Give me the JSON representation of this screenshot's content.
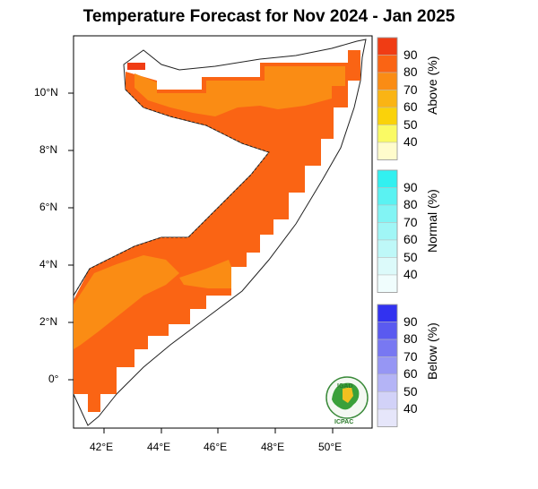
{
  "title": "Temperature Forecast for Nov 2024 - Jan 2025",
  "map": {
    "lon_ticks": [
      "42°E",
      "44°E",
      "46°E",
      "48°E",
      "50°E"
    ],
    "lat_ticks": [
      "10°N",
      "8°N",
      "6°N",
      "4°N",
      "2°N",
      "0°"
    ]
  },
  "legend": {
    "above": {
      "title": "Above (%)",
      "levels": [
        "90",
        "80",
        "70",
        "60",
        "50",
        "40"
      ],
      "colors": [
        "#f03c14",
        "#fa6414",
        "#fa8c14",
        "#fab414",
        "#fad20a",
        "#fafa64",
        "#fffccc"
      ]
    },
    "normal": {
      "title": "Normal (%)",
      "levels": [
        "90",
        "80",
        "70",
        "60",
        "50",
        "40"
      ],
      "colors": [
        "#32f0f0",
        "#5af2f2",
        "#82f4f4",
        "#a0f6f6",
        "#bef8f8",
        "#dcfafa",
        "#f0fdfd"
      ]
    },
    "below": {
      "title": "Below (%)",
      "levels": [
        "90",
        "80",
        "70",
        "60",
        "50",
        "40"
      ],
      "colors": [
        "#3232f0",
        "#5a5af0",
        "#7878f2",
        "#9696f4",
        "#b4b4f6",
        "#d2d2f8",
        "#e6e6fa"
      ]
    }
  },
  "logo": {
    "top_text": "IGAD",
    "bottom_text": "ICPAC"
  }
}
